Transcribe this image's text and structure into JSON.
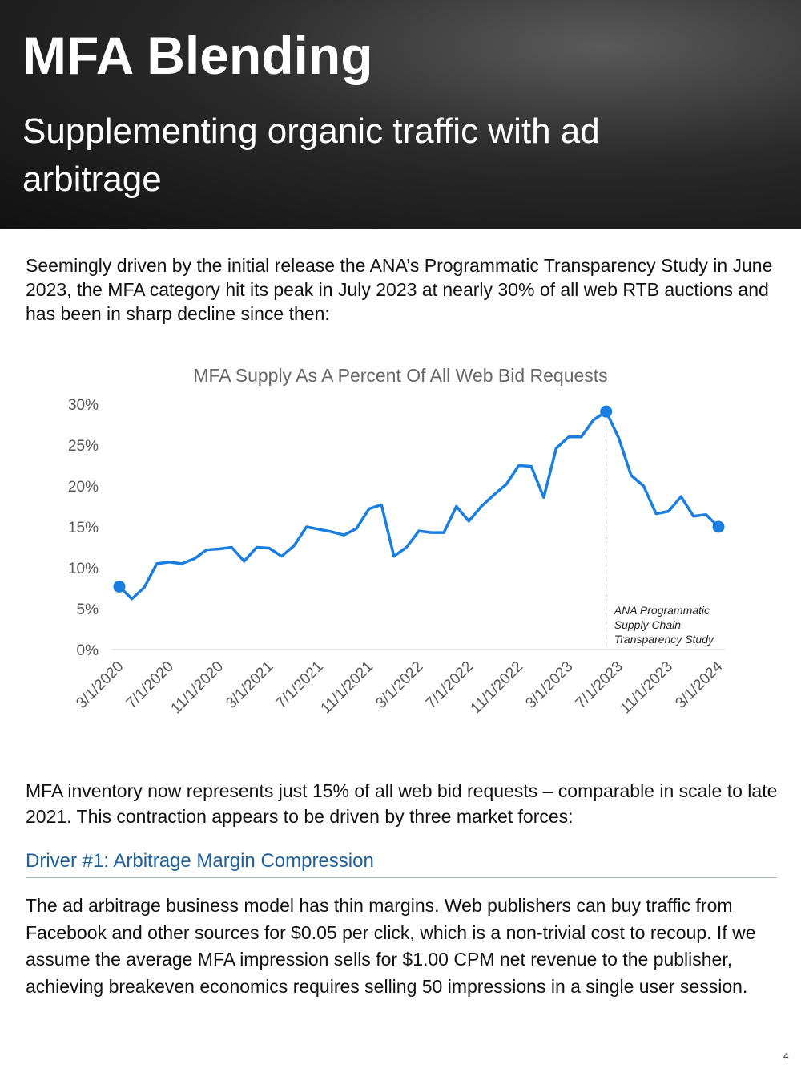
{
  "header": {
    "title": "MFA Blending",
    "subtitle": "Supplementing organic traffic with ad arbitrage"
  },
  "intro": "Seemingly driven by the initial release the ANA’s Programmatic Transparency Study in June 2023, the MFA category hit its peak in July 2023 at nearly 30% of all web RTB auctions and has been in sharp decline since then:",
  "chart_data": {
    "type": "line",
    "title": "MFA Supply As A Percent Of All Web Bid Requests",
    "categories": [
      "3/1/2020",
      null,
      null,
      null,
      "7/1/2020",
      null,
      null,
      null,
      "11/1/2020",
      null,
      null,
      null,
      "3/1/2021",
      null,
      null,
      null,
      "7/1/2021",
      null,
      null,
      null,
      "11/1/2021",
      null,
      null,
      null,
      "3/1/2022",
      null,
      null,
      null,
      "7/1/2022",
      null,
      null,
      null,
      "11/1/2022",
      null,
      null,
      null,
      "3/1/2023",
      null,
      null,
      null,
      "7/1/2023",
      null,
      null,
      null,
      "11/1/2023",
      null,
      null,
      null,
      "3/1/2024"
    ],
    "values": [
      7.7,
      6.2,
      7.6,
      10.5,
      10.7,
      10.5,
      11.1,
      12.2,
      12.3,
      12.5,
      10.8,
      12.5,
      12.4,
      11.4,
      12.7,
      15.0,
      14.7,
      14.4,
      14.0,
      14.8,
      17.2,
      17.7,
      11.4,
      12.5,
      14.5,
      14.3,
      14.3,
      17.5,
      15.7,
      17.5,
      18.9,
      20.2,
      22.5,
      22.4,
      18.6,
      24.6,
      26.0,
      26.0,
      28.1,
      29.1,
      25.9,
      21.3,
      20.0,
      16.6,
      16.9,
      18.7,
      16.3,
      16.5,
      15.0
    ],
    "color": "#1a7de0",
    "ylim": [
      0,
      30
    ],
    "yticks": [
      {
        "value": 0,
        "label": "0%"
      },
      {
        "value": 5,
        "label": "5%"
      },
      {
        "value": 10,
        "label": "10%"
      },
      {
        "value": 15,
        "label": "15%"
      },
      {
        "value": 20,
        "label": "20%"
      },
      {
        "value": 25,
        "label": "25%"
      },
      {
        "value": 30,
        "label": "30%"
      }
    ],
    "grid": false,
    "annotation": [
      "ANA Programmatic",
      "Supply Chain",
      "Transparency Study"
    ]
  },
  "summary": "MFA inventory now represents just 15% of all web bid requests – comparable in scale to late 2021. This contraction appears to be driven by three market forces:",
  "section": {
    "heading": "Driver #1: Arbitrage Margin Compression",
    "body": "The ad arbitrage business model has thin margins. Web publishers can buy traffic from Facebook and other sources for $0.05 per click, which is a non-trivial cost to recoup. If we assume the average MFA impression sells for $1.00 CPM net revenue to the publisher, achieving breakeven economics requires selling 50 impressions in a single user session."
  },
  "page_number": "4"
}
